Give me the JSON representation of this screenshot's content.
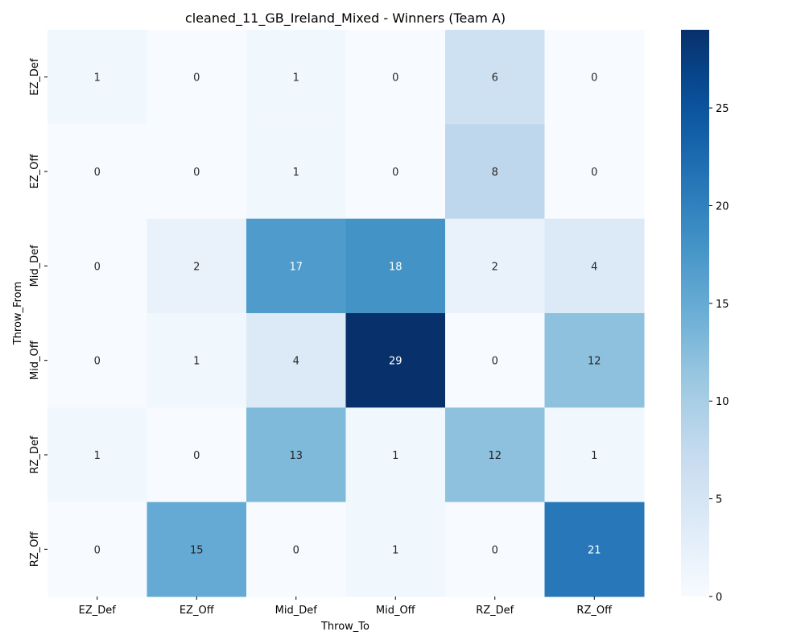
{
  "chart_data": {
    "type": "heatmap",
    "title": "cleaned_11_GB_Ireland_Mixed - Winners (Team A)",
    "xlabel": "Throw_To",
    "ylabel": "Throw_From",
    "x_categories": [
      "EZ_Def",
      "EZ_Off",
      "Mid_Def",
      "Mid_Off",
      "RZ_Def",
      "RZ_Off"
    ],
    "y_categories": [
      "EZ_Def",
      "EZ_Off",
      "Mid_Def",
      "Mid_Off",
      "RZ_Def",
      "RZ_Off"
    ],
    "values": [
      [
        1,
        0,
        1,
        0,
        6,
        0
      ],
      [
        0,
        0,
        1,
        0,
        8,
        0
      ],
      [
        0,
        2,
        17,
        18,
        2,
        4
      ],
      [
        0,
        1,
        4,
        29,
        0,
        12
      ],
      [
        1,
        0,
        13,
        1,
        12,
        1
      ],
      [
        0,
        15,
        0,
        1,
        0,
        21
      ]
    ],
    "colorbar": {
      "min": 0,
      "max": 29,
      "ticks": [
        0,
        5,
        10,
        15,
        20,
        25
      ]
    },
    "colormap": "Blues"
  }
}
